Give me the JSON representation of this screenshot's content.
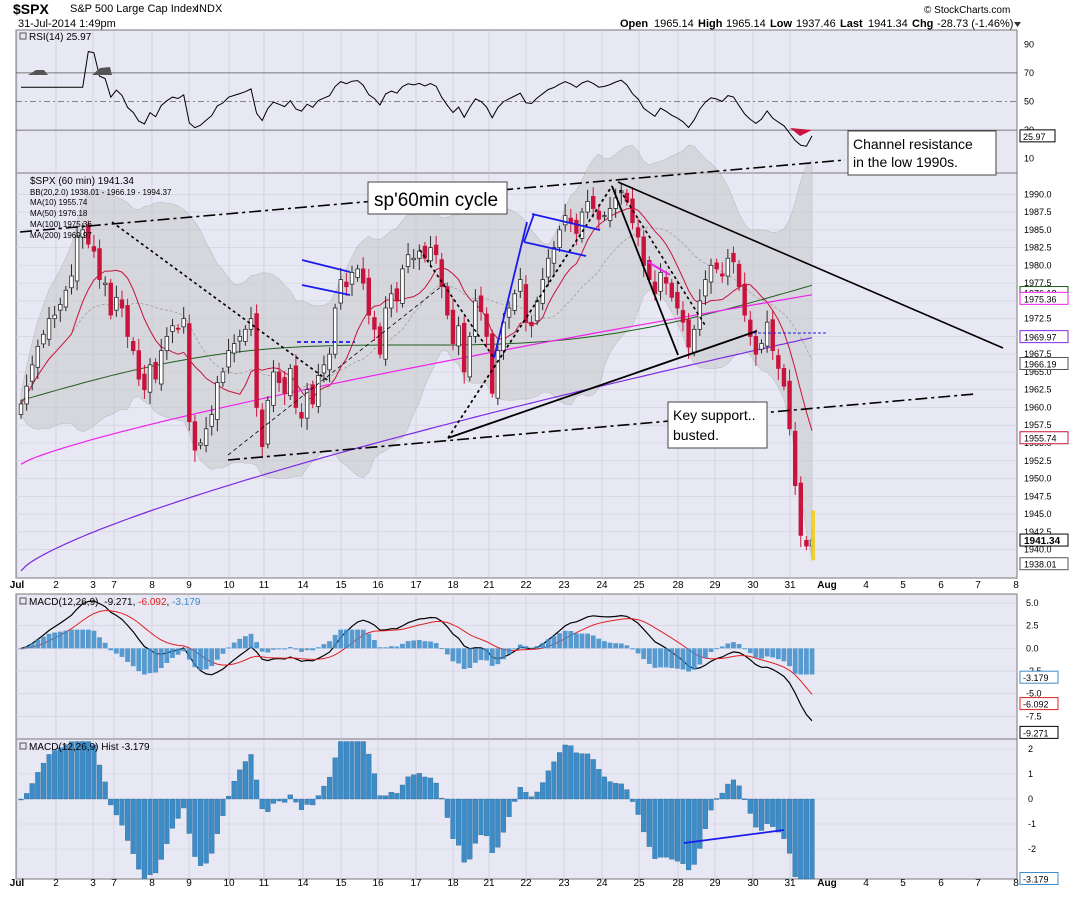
{
  "header": {
    "symbol": "$SPX",
    "name": "S&P 500 Large Cap Index",
    "exchange": "INDX",
    "datetime": "31-Jul-2014 1:49pm",
    "open_label": "Open",
    "open": "1965.14",
    "high_label": "High",
    "high": "1965.14",
    "low_label": "Low",
    "low": "1937.46",
    "last_label": "Last",
    "last": "1941.34",
    "chg_label": "Chg",
    "chg": "-28.73 (-1.46%)",
    "watermark": "© StockCharts.com"
  },
  "colors": {
    "panel_bg": "#e8e8f4",
    "up": "#2a2a2a",
    "down": "#c8143c",
    "bb_fill": "#c8c8cc",
    "ma10": "#c8143c",
    "ma50": "#1f5f1f",
    "ma100": "#ee22ee",
    "ma200": "#7a2ae0",
    "macd_line": "#000000",
    "signal_line": "#e02020",
    "hist": "#3c8cc8",
    "annot_blue": "#1a1aee"
  },
  "rsi_panel": {
    "legend": "RSI(14) 25.97",
    "levels": [
      "90",
      "70",
      "50",
      "30",
      "10"
    ],
    "last_label": "25.97"
  },
  "price_panel": {
    "legend": [
      {
        "text": "$SPX (60 min) 1941.34",
        "color": "#000000"
      },
      {
        "text": "BB(20,2.0) 1938.01 - 1966.19 - 1994.37",
        "color": "#555555"
      },
      {
        "text": "MA(10) 1955.74",
        "color": "#c8143c"
      },
      {
        "text": "MA(50) 1976.18",
        "color": "#1f5f1f"
      },
      {
        "text": "MA(100) 1975.36",
        "color": "#ee22ee"
      },
      {
        "text": "MA(200) 1969.97",
        "color": "#7a2ae0"
      }
    ],
    "y_ticks": [
      "1990.0",
      "1987.5",
      "1985.0",
      "1982.5",
      "1980.0",
      "1977.5",
      "1975.0",
      "1972.5",
      "1970.0",
      "1967.5",
      "1965.0",
      "1962.5",
      "1960.0",
      "1957.5",
      "1955.0",
      "1952.5",
      "1950.0",
      "1947.5",
      "1945.0",
      "1942.5",
      "1940.0"
    ],
    "value_boxes": [
      {
        "label": "1976.18",
        "color": "#1f5f1f"
      },
      {
        "label": "1975.36",
        "color": "#ee22ee"
      },
      {
        "label": "1969.97",
        "color": "#7a2ae0"
      },
      {
        "label": "1966.19",
        "color": "#555555"
      },
      {
        "label": "1955.74",
        "color": "#c8143c"
      },
      {
        "label": "1941.34",
        "color": "#000000"
      },
      {
        "label": "1938.01",
        "color": "#555555"
      }
    ],
    "annotations": {
      "cycle": "sp'60min cycle",
      "channel": "Channel resistance\nin the low 1990s.",
      "support": "Key support..\nbusted."
    }
  },
  "macd_panel": {
    "legend": "MACD(12,26,9) -9.271, -6.092, -3.179",
    "legend_parts": [
      "MACD(12,26,9)",
      "-9.271",
      "-6.092",
      "-3.179"
    ],
    "y_ticks": [
      "5.0",
      "2.5",
      "0.0",
      "-2.5",
      "-5.0",
      "-7.5"
    ],
    "value_boxes": [
      "-3.179",
      "-6.092",
      "-9.271"
    ]
  },
  "hist_panel": {
    "legend": "MACD(12,26,9) Hist -3.179",
    "y_ticks": [
      "2",
      "1",
      "0",
      "-1",
      "-2"
    ],
    "value_box": "-3.179"
  },
  "x_axis": {
    "labels": [
      "Jul",
      "2",
      "3",
      "7",
      "8",
      "9",
      "10",
      "11",
      "14",
      "15",
      "16",
      "17",
      "18",
      "21",
      "22",
      "23",
      "24",
      "25",
      "28",
      "29",
      "30",
      "31",
      "Aug",
      "4",
      "5",
      "6",
      "7",
      "8"
    ]
  },
  "chart_data": [
    {
      "type": "candlestick",
      "title": "$SPX (60 min) 1941.34",
      "interval": "60 min",
      "ylim": [
        1936,
        1993
      ],
      "sessions": [
        "Jul",
        "2",
        "3",
        "7",
        "8",
        "9",
        "10",
        "11",
        "14",
        "15",
        "16",
        "17",
        "18",
        "21",
        "22",
        "23",
        "24",
        "25",
        "28",
        "29",
        "30",
        "31"
      ],
      "closes": [
        1960.5,
        1963.0,
        1966.0,
        1968.6,
        1970.3,
        1972.5,
        1973.0,
        1974.5,
        1976.5,
        1978.5,
        1984.0,
        1985.0,
        1983.0,
        1982.0,
        1978.0,
        1977.5,
        1973.0,
        1975.5,
        1974.0,
        1970.0,
        1968.0,
        1964.0,
        1962.5,
        1966.0,
        1964.0,
        1968.0,
        1970.0,
        1971.5,
        1971.0,
        1972.5,
        1958.0,
        1954.0,
        1955.0,
        1957.0,
        1959.0,
        1963.5,
        1965.0,
        1968.0,
        1969.0,
        1970.0,
        1971.0,
        1972.5,
        1960.0,
        1954.5,
        1961.0,
        1965.0,
        1963.5,
        1962.0,
        1965.5,
        1960.0,
        1958.5,
        1962.5,
        1960.5,
        1964.5,
        1966.0,
        1967.5,
        1974.0,
        1978.0,
        1977.0,
        1979.0,
        1979.5,
        1977.5,
        1973.0,
        1971.0,
        1967.5,
        1974.0,
        1976.0,
        1975.0,
        1979.5,
        1981.5,
        1981.0,
        1982.0,
        1981.0,
        1982.5,
        1981.5,
        1977.0,
        1973.0,
        1969.0,
        1971.5,
        1965.0,
        1970.0,
        1975.0,
        1973.5,
        1970.0,
        1962.0,
        1968.0,
        1972.0,
        1974.0,
        1976.0,
        1978.0,
        1972.0,
        1971.5,
        1975.0,
        1978.0,
        1981.0,
        1982.5,
        1985.0,
        1987.0,
        1986.0,
        1984.5,
        1987.5,
        1989.0,
        1988.0,
        1986.5,
        1987.0,
        1988.0,
        1989.5,
        1990.5,
        1989.0,
        1986.0,
        1984.0,
        1980.0,
        1978.0,
        1976.0,
        1979.0,
        1977.5,
        1975.5,
        1974.0,
        1972.0,
        1968.5,
        1971.0,
        1975.0,
        1978.0,
        1980.0,
        1979.5,
        1978.5,
        1981.0,
        1980.5,
        1977.0,
        1973.0,
        1970.0,
        1967.5,
        1969.0,
        1972.0,
        1968.0,
        1965.5,
        1963.0,
        1957.0,
        1949.0,
        1942.0,
        1940.5,
        1941.34
      ],
      "levels": {
        "last": 1941.34,
        "bb_upper": 1994.37,
        "bb_middle": 1966.19,
        "bb_lower": 1938.01,
        "ma10": 1955.74,
        "ma50": 1976.18,
        "ma100": 1975.36,
        "ma200": 1969.97
      }
    },
    {
      "type": "line",
      "title": "RSI(14) 25.97",
      "ylim": [
        0,
        100
      ],
      "series": [
        {
          "name": "RSI(14)",
          "last": 25.97
        }
      ]
    },
    {
      "type": "line",
      "title": "MACD(12,26,9)",
      "ylim": [
        -10,
        6
      ],
      "series": [
        {
          "name": "MACD",
          "last": -9.271
        },
        {
          "name": "Signal",
          "last": -6.092
        },
        {
          "name": "Hist",
          "last": -3.179
        }
      ]
    },
    {
      "type": "bar",
      "title": "MACD(12,26,9) Hist -3.179",
      "ylim": [
        -3.2,
        2.4
      ],
      "series": [
        {
          "name": "Hist",
          "last": -3.179
        }
      ]
    }
  ]
}
